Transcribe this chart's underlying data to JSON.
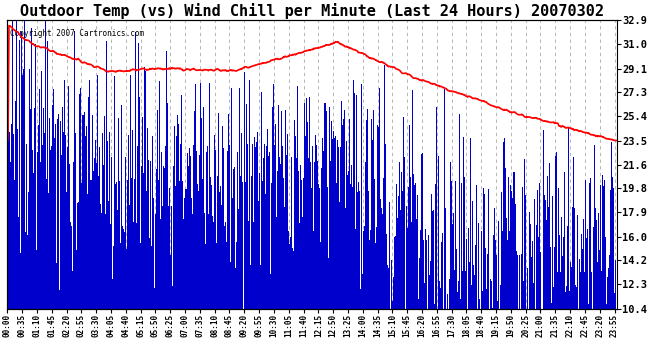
{
  "title": "Outdoor Temp (vs) Wind Chill per Minute (Last 24 Hours) 20070302",
  "copyright_text": "Copyright 2007 Cartronics.com",
  "yticks": [
    10.4,
    12.3,
    14.2,
    16.0,
    17.9,
    19.8,
    21.6,
    23.5,
    25.4,
    27.3,
    29.1,
    31.0,
    32.9
  ],
  "ylim": [
    10.4,
    32.9
  ],
  "background_color": "#ffffff",
  "grid_color": "#aaaaaa",
  "bar_color": "#0000cc",
  "line_color": "#ff0000",
  "title_fontsize": 11,
  "n_minutes": 1440,
  "x_tick_interval": 35
}
